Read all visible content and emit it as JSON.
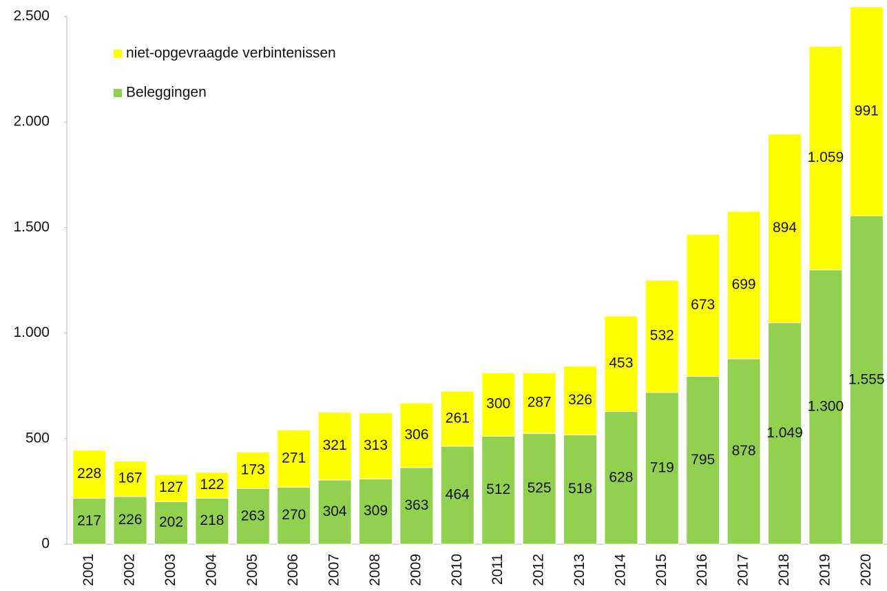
{
  "chart_data": {
    "type": "stacked_bar",
    "categories": [
      "2001",
      "2002",
      "2003",
      "2004",
      "2005",
      "2006",
      "2007",
      "2008",
      "2009",
      "2010",
      "2011",
      "2012",
      "2013",
      "2014",
      "2015",
      "2016",
      "2017",
      "2018",
      "2019",
      "2020"
    ],
    "series": [
      {
        "name": "Beleggingen",
        "color": "#92d050",
        "values": [
          217,
          226,
          202,
          218,
          263,
          270,
          304,
          309,
          363,
          464,
          512,
          525,
          518,
          628,
          719,
          795,
          878,
          1049,
          1300,
          1555
        ],
        "value_labels": [
          "217",
          "226",
          "202",
          "218",
          "263",
          "270",
          "304",
          "309",
          "363",
          "464",
          "512",
          "525",
          "518",
          "628",
          "719",
          "795",
          "878",
          "1.049",
          "1.300",
          "1.555"
        ]
      },
      {
        "name": "niet-opgevraagde verbintenissen",
        "color": "#ffff00",
        "values": [
          228,
          167,
          127,
          122,
          173,
          271,
          321,
          313,
          306,
          261,
          300,
          287,
          326,
          453,
          532,
          673,
          699,
          894,
          1059,
          991
        ],
        "value_labels": [
          "228",
          "167",
          "127",
          "122",
          "173",
          "271",
          "321",
          "313",
          "306",
          "261",
          "300",
          "287",
          "326",
          "453",
          "532",
          "673",
          "699",
          "894",
          "1.059",
          "991"
        ]
      }
    ],
    "ylim": [
      0,
      2500
    ],
    "yticks": [
      0,
      500,
      {
        "value": 1000,
        "label": "1.000"
      },
      {
        "value": 1500,
        "label": "1.500"
      },
      {
        "value": 2000,
        "label": "2.000"
      },
      {
        "value": 2500,
        "label": "2.500"
      }
    ],
    "legend": "upper left"
  }
}
